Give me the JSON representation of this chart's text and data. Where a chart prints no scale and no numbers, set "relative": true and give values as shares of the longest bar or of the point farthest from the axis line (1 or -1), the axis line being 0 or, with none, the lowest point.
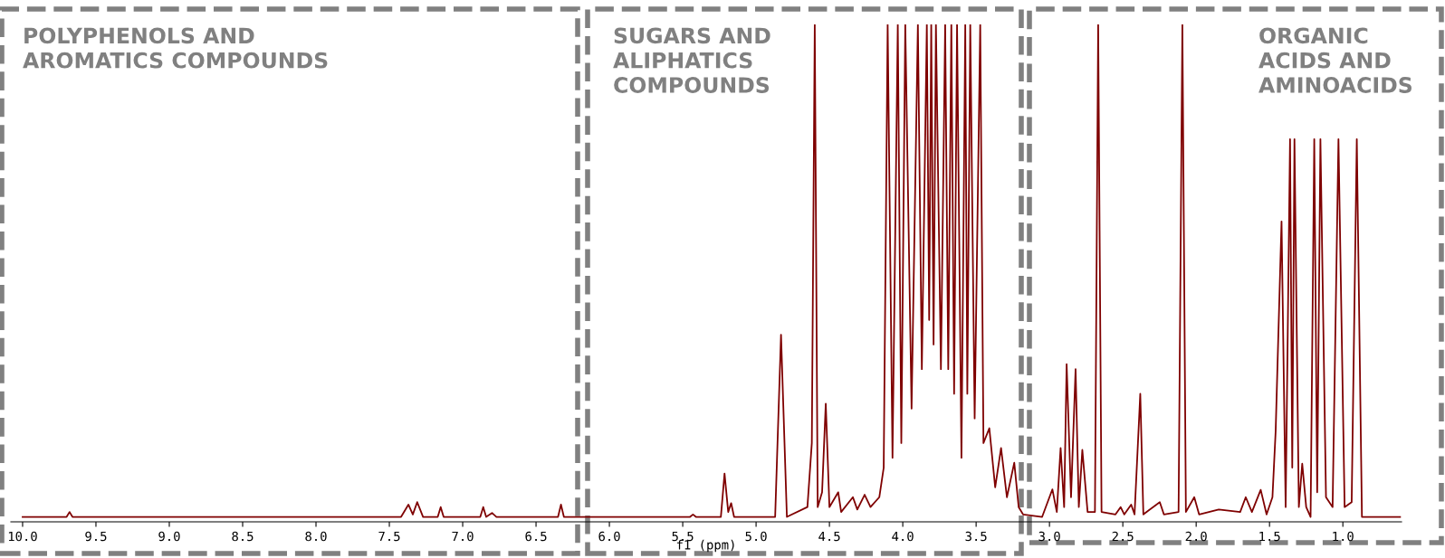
{
  "chart_data": {
    "type": "line",
    "relative": true,
    "xlabel": "f1 (ppm)",
    "xlim": [
      10.08,
      0.6
    ],
    "xticks": [
      {
        "value": 10,
        "label": "10.0"
      },
      9.5,
      {
        "value": 9,
        "label": "9.0"
      },
      8.5,
      {
        "value": 8,
        "label": "8.0"
      },
      7.5,
      {
        "value": 7,
        "label": "7.0"
      },
      6.5,
      {
        "value": 6,
        "label": "6.0"
      },
      5.5,
      {
        "value": 5,
        "label": "5.0"
      },
      4.5,
      {
        "value": 4,
        "label": "4.0"
      },
      3.5,
      {
        "value": 3,
        "label": "3.0"
      },
      2.5,
      {
        "value": 2,
        "label": "2.0"
      },
      1.5,
      {
        "value": 1,
        "label": "1.0"
      }
    ],
    "tick_labels": "x",
    "grid": false,
    "legend": false,
    "marker": "none",
    "line_style": "solid",
    "annotations": [
      "POLYPHENOLS AND\nAROMATICS COMPOUNDS",
      "SUGARS AND\nALIPHATICS\nCOMPOUNDS",
      "ORGANIC\nACIDS AND\nAMINOACIDS"
    ],
    "series": [
      {
        "color": "#7f0000",
        "x": [
          10.0,
          9.7,
          9.68,
          9.66,
          7.42,
          7.37,
          7.34,
          7.31,
          7.27,
          7.17,
          7.15,
          7.13,
          6.88,
          6.86,
          6.84,
          6.8,
          6.77,
          6.35,
          6.33,
          6.31,
          5.45,
          5.43,
          5.41,
          5.24,
          5.215,
          5.19,
          5.17,
          5.15,
          4.87,
          4.83,
          4.79,
          4.65,
          4.62,
          4.6,
          4.58,
          4.55,
          4.525,
          4.5,
          4.44,
          4.42,
          4.34,
          4.31,
          4.26,
          4.22,
          4.16,
          4.13,
          4.103,
          4.07,
          4.034,
          4.01,
          3.983,
          3.94,
          3.897,
          3.87,
          3.836,
          3.82,
          3.806,
          3.79,
          3.774,
          3.74,
          3.711,
          3.69,
          3.669,
          3.65,
          3.63,
          3.6,
          3.574,
          3.56,
          3.54,
          3.51,
          3.472,
          3.45,
          3.41,
          3.37,
          3.33,
          3.29,
          3.24,
          3.21,
          3.18,
          3.05,
          2.98,
          2.95,
          2.924,
          2.9,
          2.883,
          2.853,
          2.822,
          2.8,
          2.776,
          2.74,
          2.69,
          2.668,
          2.645,
          2.55,
          2.515,
          2.49,
          2.443,
          2.42,
          2.381,
          2.36,
          2.248,
          2.22,
          2.12,
          2.094,
          2.07,
          2.013,
          1.98,
          1.846,
          1.7,
          1.662,
          1.62,
          1.56,
          1.52,
          1.48,
          1.458,
          1.418,
          1.39,
          1.36,
          1.345,
          1.33,
          1.3,
          1.277,
          1.25,
          1.22,
          1.195,
          1.175,
          1.153,
          1.115,
          1.07,
          1.03,
          0.988,
          0.94,
          0.905,
          0.87,
          0.61
        ],
        "values": [
          0,
          0,
          0.01,
          0,
          0,
          0.025,
          0.005,
          0.03,
          0,
          0,
          0.02,
          0,
          0,
          0.02,
          0,
          0.008,
          0,
          0,
          0.025,
          0,
          0,
          0.005,
          0,
          0,
          0.088,
          0.01,
          0.028,
          0,
          0,
          0.37,
          0,
          0.02,
          0.15,
          1,
          0.02,
          0.05,
          0.23,
          0.02,
          0.05,
          0.01,
          0.04,
          0.015,
          0.045,
          0.02,
          0.04,
          0.1,
          1,
          0.12,
          1,
          0.15,
          1,
          0.22,
          1,
          0.3,
          1,
          0.4,
          1,
          0.35,
          1,
          0.3,
          1,
          0.3,
          1,
          0.25,
          1,
          0.12,
          1,
          0.25,
          1,
          0.2,
          1,
          0.15,
          0.18,
          0.06,
          0.14,
          0.04,
          0.11,
          0.02,
          0.005,
          0,
          0.056,
          0.01,
          0.14,
          0.02,
          0.31,
          0.04,
          0.3,
          0.02,
          0.136,
          0.01,
          0.01,
          1,
          0.01,
          0.005,
          0.02,
          0.005,
          0.025,
          0.005,
          0.25,
          0.005,
          0.03,
          0.005,
          0.01,
          1,
          0.01,
          0.04,
          0.005,
          0.015,
          0.01,
          0.04,
          0.01,
          0.055,
          0.005,
          0.04,
          0.175,
          0.6,
          0.02,
          0.767,
          0.1,
          0.767,
          0.02,
          0.108,
          0.02,
          0,
          0.767,
          0.05,
          0.767,
          0.04,
          0.02,
          0.767,
          0.02,
          0.03,
          0.767,
          0,
          0
        ]
      }
    ]
  }
}
